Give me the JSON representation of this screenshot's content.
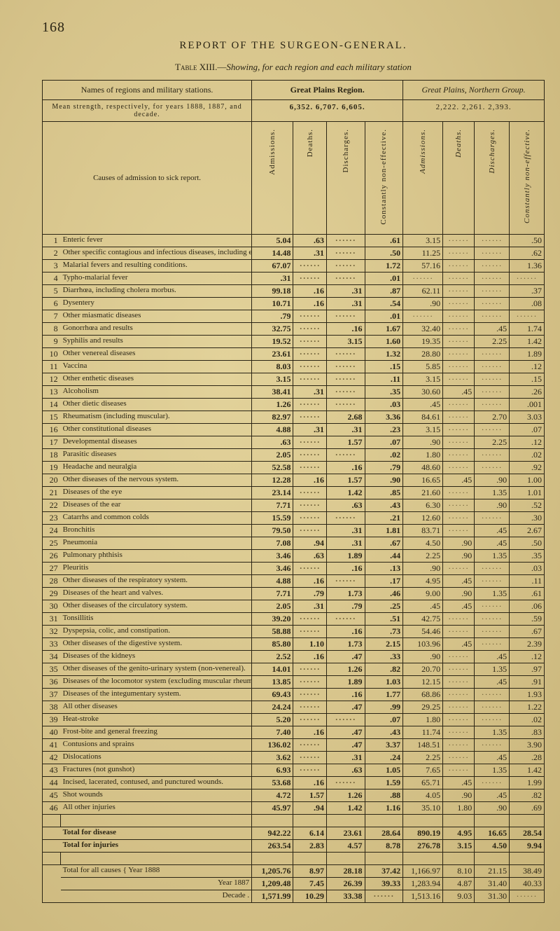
{
  "page_number": "168",
  "running_head": "REPORT OF THE SURGEON-GENERAL.",
  "caption_lead": "Table XIII.—",
  "caption_ital": "Showing, for each region and each military station",
  "head": {
    "names": "Names of regions and military stations.",
    "mean": "Mean strength, respectively, for years 1888, 1887, and decade.",
    "causes": "Causes of admission to sick report.",
    "gp_region": "Great Plains Region.",
    "gp_region_nums": "6,352.   6,707.   6,605.",
    "gp_north": "Great Plains, Northern Group.",
    "gp_north_nums": "2,222.   2,261.   2,393.",
    "cols": [
      "Admissions.",
      "Deaths.",
      "Discharges.",
      "Constantly non-effective.",
      "Admissions.",
      "Deaths.",
      "Discharges.",
      "Constantly non-effective."
    ]
  },
  "rows": [
    {
      "n": "1",
      "cause": "Enteric fever",
      "a": "5.04",
      "b": ".63",
      "c": "",
      "d": ".61",
      "e": "3.15",
      "f": "",
      "g": "",
      "h": ".50"
    },
    {
      "n": "2",
      "cause": "Other specific contagious and infectious diseases, including erysipelas.",
      "a": "14.48",
      "b": ".31",
      "c": "",
      "d": ".50",
      "e": "11.25",
      "f": "",
      "g": "",
      "h": ".62"
    },
    {
      "n": "3",
      "cause": "Malarial fevers and resulting conditions.",
      "a": "67.07",
      "b": "",
      "c": "",
      "d": "1.72",
      "e": "57.16",
      "f": "",
      "g": "",
      "h": "1.36"
    },
    {
      "n": "4",
      "cause": "Typho-malarial fever",
      "a": ".31",
      "b": "",
      "c": "",
      "d": ".01",
      "e": "",
      "f": "",
      "g": "",
      "h": ""
    },
    {
      "n": "5",
      "cause": "Diarrhœa, including cholera morbus.",
      "a": "99.18",
      "b": ".16",
      "c": ".31",
      "d": ".87",
      "e": "62.11",
      "f": "",
      "g": "",
      "h": ".37"
    },
    {
      "n": "6",
      "cause": "Dysentery",
      "a": "10.71",
      "b": ".16",
      "c": ".31",
      "d": ".54",
      "e": ".90",
      "f": "",
      "g": "",
      "h": ".08"
    },
    {
      "n": "7",
      "cause": "Other miasmatic diseases",
      "a": ".79",
      "b": "",
      "c": "",
      "d": ".01",
      "e": "",
      "f": "",
      "g": "",
      "h": ""
    },
    {
      "n": "8",
      "cause": "Gonorrhœa and results",
      "a": "32.75",
      "b": "",
      "c": ".16",
      "d": "1.67",
      "e": "32.40",
      "f": "",
      "g": ".45",
      "h": "1.74"
    },
    {
      "n": "9",
      "cause": "Syphilis and results",
      "a": "19.52",
      "b": "",
      "c": "3.15",
      "d": "1.60",
      "e": "19.35",
      "f": "",
      "g": "2.25",
      "h": "1.42"
    },
    {
      "n": "10",
      "cause": "Other venereal diseases",
      "a": "23.61",
      "b": "",
      "c": "",
      "d": "1.32",
      "e": "28.80",
      "f": "",
      "g": "",
      "h": "1.89"
    },
    {
      "n": "11",
      "cause": "Vaccina",
      "a": "8.03",
      "b": "",
      "c": "",
      "d": ".15",
      "e": "5.85",
      "f": "",
      "g": "",
      "h": ".12"
    },
    {
      "n": "12",
      "cause": "Other enthetic diseases",
      "a": "3.15",
      "b": "",
      "c": "",
      "d": ".11",
      "e": "3.15",
      "f": "",
      "g": "",
      "h": ".15"
    },
    {
      "n": "13",
      "cause": "Alcoholism",
      "a": "38.41",
      "b": ".31",
      "c": "",
      "d": ".35",
      "e": "30.60",
      "f": ".45",
      "g": "",
      "h": ".26"
    },
    {
      "n": "14",
      "cause": "Other dietic diseases",
      "a": "1.26",
      "b": "",
      "c": "",
      "d": ".03",
      "e": ".45",
      "f": "",
      "g": "",
      "h": ".001"
    },
    {
      "n": "15",
      "cause": "Rheumatism (including muscular).",
      "a": "82.97",
      "b": "",
      "c": "2.68",
      "d": "3.36",
      "e": "84.61",
      "f": "",
      "g": "2.70",
      "h": "3.03"
    },
    {
      "n": "16",
      "cause": "Other constitutional diseases",
      "a": "4.88",
      "b": ".31",
      "c": ".31",
      "d": ".23",
      "e": "3.15",
      "f": "",
      "g": "",
      "h": ".07"
    },
    {
      "n": "17",
      "cause": "Developmental diseases",
      "a": ".63",
      "b": "",
      "c": "1.57",
      "d": ".07",
      "e": ".90",
      "f": "",
      "g": "2.25",
      "h": ".12"
    },
    {
      "n": "18",
      "cause": "Parasitic diseases",
      "a": "2.05",
      "b": "",
      "c": "",
      "d": ".02",
      "e": "1.80",
      "f": "",
      "g": "",
      "h": ".02"
    },
    {
      "n": "19",
      "cause": "Headache and neuralgia",
      "a": "52.58",
      "b": "",
      "c": ".16",
      "d": ".79",
      "e": "48.60",
      "f": "",
      "g": "",
      "h": ".92"
    },
    {
      "n": "20",
      "cause": "Other diseases of the nervous system.",
      "a": "12.28",
      "b": ".16",
      "c": "1.57",
      "d": ".90",
      "e": "16.65",
      "f": ".45",
      "g": ".90",
      "h": "1.00"
    },
    {
      "n": "21",
      "cause": "Diseases of the eye",
      "a": "23.14",
      "b": "",
      "c": "1.42",
      "d": ".85",
      "e": "21.60",
      "f": "",
      "g": "1.35",
      "h": "1.01"
    },
    {
      "n": "22",
      "cause": "Diseases of the ear",
      "a": "7.71",
      "b": "",
      "c": ".63",
      "d": ".43",
      "e": "6.30",
      "f": "",
      "g": ".90",
      "h": ".52"
    },
    {
      "n": "23",
      "cause": "Catarrhs and common colds",
      "a": "15.59",
      "b": "",
      "c": "",
      "d": ".21",
      "e": "12.60",
      "f": "",
      "g": "",
      "h": ".30"
    },
    {
      "n": "24",
      "cause": "Bronchitis",
      "a": "79.50",
      "b": "",
      "c": ".31",
      "d": "1.81",
      "e": "83.71",
      "f": "",
      "g": ".45",
      "h": "2.67"
    },
    {
      "n": "25",
      "cause": "Pneumonia",
      "a": "7.08",
      "b": ".94",
      "c": ".31",
      "d": ".67",
      "e": "4.50",
      "f": ".90",
      "g": ".45",
      "h": ".50"
    },
    {
      "n": "26",
      "cause": "Pulmonary phthisis",
      "a": "3.46",
      "b": ".63",
      "c": "1.89",
      "d": ".44",
      "e": "2.25",
      "f": ".90",
      "g": "1.35",
      "h": ".35"
    },
    {
      "n": "27",
      "cause": "Pleuritis",
      "a": "3.46",
      "b": "",
      "c": ".16",
      "d": ".13",
      "e": ".90",
      "f": "",
      "g": "",
      "h": ".03"
    },
    {
      "n": "28",
      "cause": "Other diseases of the respiratory system.",
      "a": "4.88",
      "b": ".16",
      "c": "",
      "d": ".17",
      "e": "4.95",
      "f": ".45",
      "g": "",
      "h": ".11"
    },
    {
      "n": "29",
      "cause": "Diseases of the heart and valves.",
      "a": "7.71",
      "b": ".79",
      "c": "1.73",
      "d": ".46",
      "e": "9.00",
      "f": ".90",
      "g": "1.35",
      "h": ".61"
    },
    {
      "n": "30",
      "cause": "Other diseases of the circulatory system.",
      "a": "2.05",
      "b": ".31",
      "c": ".79",
      "d": ".25",
      "e": ".45",
      "f": ".45",
      "g": "",
      "h": ".06"
    },
    {
      "n": "31",
      "cause": "Tonsillitis",
      "a": "39.20",
      "b": "",
      "c": "",
      "d": ".51",
      "e": "42.75",
      "f": "",
      "g": "",
      "h": ".59"
    },
    {
      "n": "32",
      "cause": "Dyspepsia, colic, and constipation.",
      "a": "58.88",
      "b": "",
      "c": ".16",
      "d": ".73",
      "e": "54.46",
      "f": "",
      "g": "",
      "h": ".67"
    },
    {
      "n": "33",
      "cause": "Other diseases of the digestive system.",
      "a": "85.80",
      "b": "1.10",
      "c": "1.73",
      "d": "2.15",
      "e": "103.96",
      "f": ".45",
      "g": "",
      "h": "2.39"
    },
    {
      "n": "34",
      "cause": "Diseases of the kidneys",
      "a": "2.52",
      "b": ".16",
      "c": ".47",
      "d": ".33",
      "e": ".90",
      "f": "",
      "g": ".45",
      "h": ".12"
    },
    {
      "n": "35",
      "cause": "Other diseases of the genito-urinary system (non-venereal).",
      "a": "14.01",
      "b": "",
      "c": "1.26",
      "d": ".82",
      "e": "20.70",
      "f": "",
      "g": "1.35",
      "h": ".97"
    },
    {
      "n": "36",
      "cause": "Diseases of the locomotor system (excluding muscular rheumatism).",
      "a": "13.85",
      "b": "",
      "c": "1.89",
      "d": "1.03",
      "e": "12.15",
      "f": "",
      "g": ".45",
      "h": ".91"
    },
    {
      "n": "37",
      "cause": "Diseases of the integumentary system.",
      "a": "69.43",
      "b": "",
      "c": ".16",
      "d": "1.77",
      "e": "68.86",
      "f": "",
      "g": "",
      "h": "1.93"
    },
    {
      "n": "38",
      "cause": "All other diseases",
      "a": "24.24",
      "b": "",
      "c": ".47",
      "d": ".99",
      "e": "29.25",
      "f": "",
      "g": "",
      "h": "1.22"
    },
    {
      "n": "39",
      "cause": "Heat-stroke",
      "a": "5.20",
      "b": "",
      "c": "",
      "d": ".07",
      "e": "1.80",
      "f": "",
      "g": "",
      "h": ".02"
    },
    {
      "n": "40",
      "cause": "Frost-bite and general freezing",
      "a": "7.40",
      "b": ".16",
      "c": ".47",
      "d": ".43",
      "e": "11.74",
      "f": "",
      "g": "1.35",
      "h": ".83"
    },
    {
      "n": "41",
      "cause": "Contusions and sprains",
      "a": "136.02",
      "b": "",
      "c": ".47",
      "d": "3.37",
      "e": "148.51",
      "f": "",
      "g": "",
      "h": "3.90"
    },
    {
      "n": "42",
      "cause": "Dislocations",
      "a": "3.62",
      "b": "",
      "c": ".31",
      "d": ".24",
      "e": "2.25",
      "f": "",
      "g": ".45",
      "h": ".28"
    },
    {
      "n": "43",
      "cause": "Fractures (not gunshot)",
      "a": "6.93",
      "b": "",
      "c": ".63",
      "d": "1.05",
      "e": "7.65",
      "f": "",
      "g": "1.35",
      "h": "1.42"
    },
    {
      "n": "44",
      "cause": "Incised, lacerated, contused, and punctured wounds.",
      "a": "53.68",
      "b": ".16",
      "c": "",
      "d": "1.59",
      "e": "65.71",
      "f": ".45",
      "g": "",
      "h": "1.99"
    },
    {
      "n": "45",
      "cause": "Shot wounds",
      "a": "4.72",
      "b": "1.57",
      "c": "1.26",
      "d": ".88",
      "e": "4.05",
      "f": ".90",
      "g": ".45",
      "h": ".82"
    },
    {
      "n": "46",
      "cause": "All other injuries",
      "a": "45.97",
      "b": ".94",
      "c": "1.42",
      "d": "1.16",
      "e": "35.10",
      "f": "1.80",
      "g": ".90",
      "h": ".69"
    }
  ],
  "totals": [
    {
      "label": "Total for disease",
      "a": "942.22",
      "b": "6.14",
      "c": "23.61",
      "d": "28.64",
      "e": "890.19",
      "f": "4.95",
      "g": "16.65",
      "h": "28.54"
    },
    {
      "label": "Total for injuries",
      "a": "263.54",
      "b": "2.83",
      "c": "4.57",
      "d": "8.78",
      "e": "276.78",
      "f": "3.15",
      "g": "4.50",
      "h": "9.94"
    }
  ],
  "allcauses": {
    "label": "Total for all causes",
    "rows": [
      {
        "yr": "Year 1888",
        "a": "1,205.76",
        "b": "8.97",
        "c": "28.18",
        "d": "37.42",
        "e": "1,166.97",
        "f": "8.10",
        "g": "21.15",
        "h": "38.49"
      },
      {
        "yr": "Year 1887",
        "a": "1,209.48",
        "b": "7.45",
        "c": "26.39",
        "d": "39.33",
        "e": "1,283.94",
        "f": "4.87",
        "g": "31.40",
        "h": "40.33"
      },
      {
        "yr": "Decade .",
        "a": "1,571.99",
        "b": "10.29",
        "c": "33.38",
        "d": "",
        "e": "1,513.16",
        "f": "9.03",
        "g": "31.30",
        "h": ""
      }
    ]
  },
  "style": {
    "bg": "#d6c38a",
    "ink": "#2a2414",
    "bold_cols": [
      "a",
      "b",
      "c",
      "d"
    ]
  }
}
